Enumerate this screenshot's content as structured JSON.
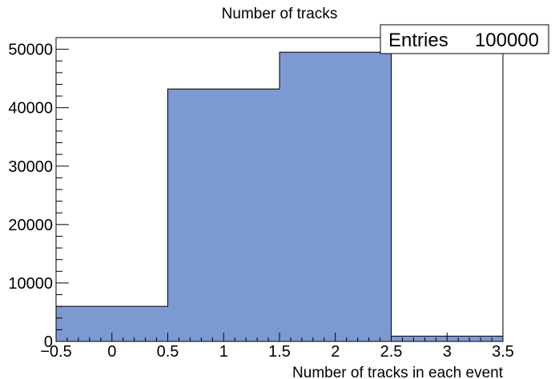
{
  "chart_data": {
    "type": "bar",
    "title": "Number of tracks",
    "xlabel": "Number of tracks in each event",
    "ylabel": "",
    "bin_edges": [
      -0.5,
      0.5,
      1.5,
      2.5,
      3.5
    ],
    "values": [
      6000,
      43200,
      49500,
      900
    ],
    "xlim": [
      -0.5,
      3.5
    ],
    "ylim": [
      0,
      52000
    ],
    "x_ticks": [
      -0.5,
      0,
      0.5,
      1,
      1.5,
      2,
      2.5,
      3,
      3.5
    ],
    "x_tick_labels": [
      "−0.5",
      "0",
      "0.5",
      "1",
      "1.5",
      "2",
      "2.5",
      "3",
      "3.5"
    ],
    "y_ticks": [
      0,
      10000,
      20000,
      30000,
      40000,
      50000
    ],
    "y_tick_labels": [
      "0",
      "10000",
      "20000",
      "30000",
      "40000",
      "50000"
    ],
    "fill_color": "#7d99d1",
    "line_color": "#000000",
    "grid": false,
    "legend": "none",
    "stats_box": {
      "label": "Entries",
      "value": "100000",
      "position": "top-right"
    }
  }
}
